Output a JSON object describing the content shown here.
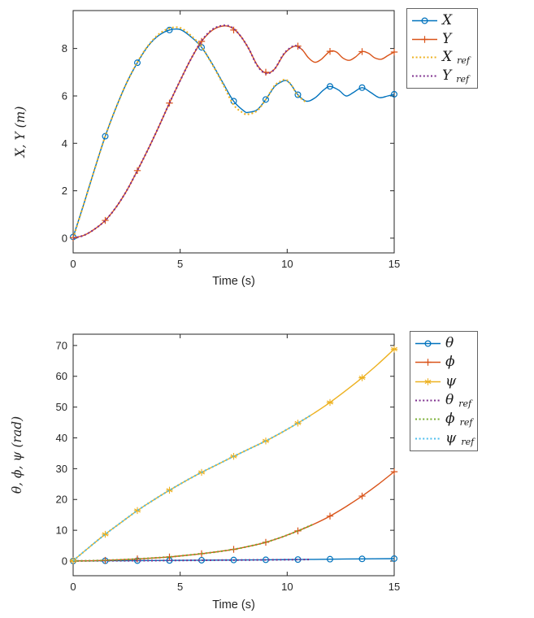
{
  "figure": {
    "background": "#ffffff",
    "axis_color": "#262626",
    "text_color": "#262626"
  },
  "chart_data": [
    {
      "type": "line",
      "title": "",
      "xlabel": "Time (s)",
      "ylabel": "X, Y (m)",
      "xlim": [
        0,
        15
      ],
      "ylim": [
        -0.62,
        9.6
      ],
      "xticks": [
        0,
        5,
        10,
        15
      ],
      "yticks": [
        0,
        2,
        4,
        6,
        8
      ],
      "grid": false,
      "legend_location": "outside-top-right",
      "series": [
        {
          "legend": {
            "main": "X",
            "sub": ""
          },
          "color": "#0072BD",
          "style": "solid",
          "marker": "circle",
          "x": [
            0,
            0.5,
            1,
            1.5,
            2,
            2.5,
            3,
            3.5,
            4,
            4.5,
            5,
            5.5,
            6,
            6.5,
            7,
            7.5,
            8,
            8.2,
            8.6,
            9,
            9.4,
            9.7,
            9.95,
            10.2,
            10.5,
            10.9,
            11.3,
            11.7,
            12,
            12.4,
            12.75,
            13.1,
            13.5,
            13.9,
            14.3,
            14.7,
            15
          ],
          "y": [
            0.05,
            1.45,
            2.9,
            4.3,
            5.5,
            6.55,
            7.4,
            8.1,
            8.55,
            8.78,
            8.8,
            8.5,
            8.05,
            7.35,
            6.55,
            5.78,
            5.35,
            5.31,
            5.42,
            5.85,
            6.38,
            6.58,
            6.65,
            6.45,
            6.05,
            5.78,
            5.92,
            6.25,
            6.4,
            6.25,
            6.0,
            6.15,
            6.35,
            6.15,
            5.93,
            6.0,
            6.07
          ],
          "marker_x": [
            0,
            1.5,
            3,
            4.5,
            6,
            7.5,
            9,
            10.5,
            12,
            13.5,
            15
          ],
          "marker_y": [
            0.05,
            4.3,
            7.4,
            8.78,
            8.05,
            5.78,
            5.85,
            6.05,
            6.4,
            6.35,
            6.07
          ]
        },
        {
          "legend": {
            "main": "Y",
            "sub": ""
          },
          "color": "#D95319",
          "style": "solid",
          "marker": "plus",
          "x": [
            0,
            0.5,
            1,
            1.5,
            2,
            2.5,
            3,
            3.5,
            4,
            4.5,
            5,
            5.5,
            6,
            6.5,
            7,
            7.4,
            7.8,
            8.2,
            8.6,
            9,
            9.4,
            9.8,
            10.1,
            10.4,
            10.7,
            11,
            11.3,
            11.6,
            12,
            12.3,
            12.6,
            12.9,
            13.2,
            13.5,
            13.8,
            14.1,
            14.4,
            14.7,
            15
          ],
          "y": [
            0.02,
            0.12,
            0.38,
            0.75,
            1.3,
            2.0,
            2.85,
            3.75,
            4.7,
            5.7,
            6.65,
            7.55,
            8.3,
            8.77,
            8.95,
            8.88,
            8.55,
            8.0,
            7.3,
            6.97,
            7.12,
            7.7,
            7.98,
            8.1,
            7.95,
            7.6,
            7.42,
            7.55,
            7.88,
            7.85,
            7.6,
            7.5,
            7.65,
            7.87,
            7.8,
            7.6,
            7.55,
            7.7,
            7.85
          ],
          "marker_x": [
            0,
            1.5,
            3,
            4.5,
            6,
            7.5,
            9,
            10.5,
            12,
            13.5,
            15
          ],
          "marker_y": [
            0.02,
            0.75,
            2.85,
            5.7,
            8.3,
            8.78,
            7.0,
            8.1,
            7.88,
            7.87,
            7.85
          ]
        },
        {
          "legend": {
            "main": "X",
            "sub": "ref"
          },
          "color": "#EDB120",
          "style": "dotted",
          "marker": "none",
          "x": [
            0,
            0.5,
            1,
            1.5,
            2,
            2.5,
            3,
            3.5,
            4,
            4.5,
            5,
            5.5,
            6,
            6.5,
            7,
            7.5,
            8,
            8.2,
            8.6,
            9,
            9.4,
            9.7,
            9.95,
            10.2,
            10.5,
            10.9
          ],
          "y": [
            0.0,
            1.45,
            2.9,
            4.3,
            5.5,
            6.55,
            7.42,
            8.12,
            8.6,
            8.85,
            8.87,
            8.55,
            8.07,
            7.32,
            6.5,
            5.62,
            5.25,
            5.23,
            5.38,
            5.85,
            6.42,
            6.62,
            6.68,
            6.45,
            6.02,
            5.72
          ]
        },
        {
          "legend": {
            "main": "Y",
            "sub": "ref"
          },
          "color": "#7E2F8E",
          "style": "dotted",
          "marker": "none",
          "x": [
            0,
            0.5,
            1,
            1.5,
            2,
            2.5,
            3,
            3.5,
            4,
            4.5,
            5,
            5.5,
            6,
            6.5,
            7,
            7.4,
            7.8,
            8.2,
            8.6,
            9,
            9.4,
            9.8,
            10.1,
            10.4,
            10.7
          ],
          "y": [
            0.0,
            0.12,
            0.38,
            0.75,
            1.3,
            2.0,
            2.85,
            3.75,
            4.7,
            5.7,
            6.65,
            7.55,
            8.32,
            8.8,
            8.97,
            8.9,
            8.55,
            8.0,
            7.28,
            6.95,
            7.12,
            7.72,
            8.0,
            8.12,
            7.95
          ]
        }
      ]
    },
    {
      "type": "line",
      "title": "",
      "xlabel": "Time (s)",
      "ylabel": "θ, ϕ, ψ (rad)",
      "xlim": [
        0,
        15
      ],
      "ylim": [
        -4.75,
        73.65
      ],
      "xticks": [
        0,
        5,
        10,
        15
      ],
      "yticks": [
        0,
        10,
        20,
        30,
        40,
        50,
        60,
        70
      ],
      "grid": false,
      "legend_location": "outside-top-right",
      "series": [
        {
          "legend": {
            "main": "θ",
            "sub": ""
          },
          "color": "#0072BD",
          "style": "solid",
          "marker": "circle",
          "x": [
            0,
            1.5,
            3,
            4.5,
            6,
            7.5,
            9,
            10.5,
            12,
            13.5,
            15
          ],
          "y": [
            0.05,
            0.1,
            0.15,
            0.2,
            0.28,
            0.35,
            0.42,
            0.5,
            0.62,
            0.72,
            0.8
          ],
          "marker_x": [
            0,
            1.5,
            3,
            4.5,
            6,
            7.5,
            9,
            10.5,
            12,
            13.5,
            15
          ],
          "marker_y": [
            0.05,
            0.1,
            0.15,
            0.2,
            0.28,
            0.35,
            0.42,
            0.5,
            0.62,
            0.72,
            0.8
          ]
        },
        {
          "legend": {
            "main": "ϕ",
            "sub": ""
          },
          "color": "#D95319",
          "style": "solid",
          "marker": "plus",
          "x": [
            0,
            0.75,
            1.5,
            2.25,
            3,
            3.75,
            4.5,
            5.25,
            6,
            6.75,
            7.5,
            8.25,
            9,
            9.75,
            10.5,
            11.25,
            12,
            12.75,
            13.5,
            14.25,
            15
          ],
          "y": [
            0.05,
            0.1,
            0.25,
            0.45,
            0.7,
            1.0,
            1.35,
            1.85,
            2.4,
            3.05,
            3.8,
            4.85,
            6.1,
            7.8,
            9.8,
            12.0,
            14.6,
            17.7,
            21.1,
            24.9,
            29.0
          ],
          "marker_x": [
            0,
            1.5,
            3,
            4.5,
            6,
            7.5,
            9,
            10.5,
            12,
            13.5,
            15
          ],
          "marker_y": [
            0.05,
            0.25,
            0.7,
            1.35,
            2.4,
            3.8,
            6.1,
            9.8,
            14.6,
            21.1,
            29.0
          ]
        },
        {
          "legend": {
            "main": "ψ",
            "sub": ""
          },
          "color": "#EDB120",
          "style": "solid",
          "marker": "star",
          "x": [
            0,
            0.75,
            1.5,
            2.25,
            3,
            3.75,
            4.5,
            5.25,
            6,
            6.75,
            7.5,
            8.25,
            9,
            9.75,
            10.5,
            11.25,
            12,
            12.75,
            13.5,
            14.25,
            15
          ],
          "y": [
            0.1,
            4.5,
            8.7,
            12.6,
            16.4,
            19.8,
            23.0,
            26.0,
            28.8,
            31.4,
            34.0,
            36.5,
            39.0,
            41.8,
            44.8,
            48.0,
            51.5,
            55.4,
            59.5,
            64.0,
            68.8
          ],
          "marker_x": [
            0,
            1.5,
            3,
            4.5,
            6,
            7.5,
            9,
            10.5,
            12,
            13.5,
            15
          ],
          "marker_y": [
            0.1,
            8.7,
            16.4,
            23.0,
            28.8,
            34.0,
            39.0,
            44.8,
            51.5,
            59.5,
            68.8
          ]
        },
        {
          "legend": {
            "main": "θ",
            "sub": "ref"
          },
          "color": "#7E2F8E",
          "style": "dotted",
          "marker": "none",
          "x": [
            0,
            1.5,
            3,
            4.5,
            6,
            7.5,
            9,
            10.5,
            11.1
          ],
          "y": [
            0.05,
            0.1,
            0.14,
            0.19,
            0.26,
            0.33,
            0.4,
            0.48,
            0.52
          ]
        },
        {
          "legend": {
            "main": "ϕ",
            "sub": "ref"
          },
          "color": "#77AC30",
          "style": "dotted",
          "marker": "none",
          "x": [
            0,
            0.75,
            1.5,
            2.25,
            3,
            3.75,
            4.5,
            5.25,
            6,
            6.75,
            7.5,
            8.25,
            9,
            9.75,
            10.5,
            11.2
          ],
          "y": [
            0.05,
            0.1,
            0.25,
            0.45,
            0.7,
            1.0,
            1.35,
            1.85,
            2.4,
            3.05,
            3.8,
            4.85,
            6.1,
            7.8,
            9.8,
            11.9
          ]
        },
        {
          "legend": {
            "main": "ψ",
            "sub": "ref"
          },
          "color": "#4DBEEE",
          "style": "dotted",
          "marker": "none",
          "x": [
            0,
            0.75,
            1.5,
            2.25,
            3,
            3.75,
            4.5,
            5.25,
            6,
            6.75,
            7.5,
            8.25,
            9,
            9.75,
            10.5,
            11.1
          ],
          "y": [
            0.1,
            4.5,
            8.7,
            12.6,
            16.4,
            19.8,
            23.0,
            26.0,
            28.8,
            31.4,
            34.0,
            36.5,
            39.0,
            41.8,
            44.8,
            47.3
          ]
        }
      ]
    }
  ]
}
